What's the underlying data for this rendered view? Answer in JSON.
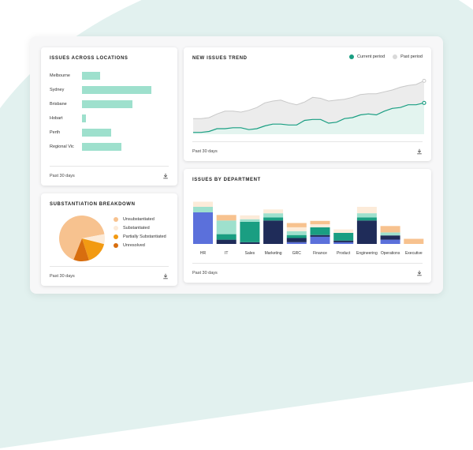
{
  "locations_card": {
    "title": "ISSUES ACROSS LOCATIONS",
    "footer": "Past 30 days",
    "rows": [
      {
        "label": "Melbourne",
        "value": 23
      },
      {
        "label": "Sydney",
        "value": 88
      },
      {
        "label": "Brisbane",
        "value": 64
      },
      {
        "label": "Hobart",
        "value": 5
      },
      {
        "label": "Perth",
        "value": 37
      },
      {
        "label": "Regional Vic",
        "value": 50
      }
    ],
    "max_value": 100,
    "bar_color": "#9ee0cd"
  },
  "trend_card": {
    "title": "NEW ISSUES TREND",
    "footer": "Past 30 days",
    "legend": {
      "current": "Current period",
      "past": "Past period"
    },
    "colors": {
      "current": "#1a9e82",
      "current_fill": "#e3f4ef",
      "past": "#c8c8c8",
      "past_fill": "#ececec"
    }
  },
  "substantiation_card": {
    "title": "SUBSTANTIATION BREAKDOWN",
    "footer": "Past 30 days",
    "legend": [
      {
        "label": "Unsubstantiated",
        "color": "#f7c28f"
      },
      {
        "label": "Substantiated",
        "color": "#fcebd9"
      },
      {
        "label": "Partially Substantiated",
        "color": "#f29a12"
      },
      {
        "label": "Unresolved",
        "color": "#d86e0f"
      }
    ]
  },
  "department_card": {
    "title": "ISSUES BY DEPARTMENT",
    "footer": "Past 30 days",
    "segment_colors": [
      "#5b70db",
      "#1f2c59",
      "#1a9e82",
      "#9ee0cd",
      "#fcebd9",
      "#f7c28f"
    ]
  },
  "chart_data": [
    {
      "type": "bar",
      "title": "ISSUES ACROSS LOCATIONS",
      "orientation": "horizontal",
      "categories": [
        "Melbourne",
        "Sydney",
        "Brisbane",
        "Hobart",
        "Perth",
        "Regional Vic"
      ],
      "values": [
        23,
        88,
        64,
        5,
        37,
        50
      ]
    },
    {
      "type": "area",
      "title": "NEW ISSUES TREND",
      "xlabel": "Past 30 days",
      "series": [
        {
          "name": "Current period",
          "values": [
            2,
            2,
            3,
            6,
            6,
            7,
            7,
            5,
            6,
            9,
            11,
            11,
            10,
            10,
            15,
            16,
            16,
            12,
            13,
            17,
            18,
            21,
            22,
            21,
            25,
            28,
            29,
            32,
            32,
            34
          ]
        },
        {
          "name": "Past period",
          "values": [
            17,
            17,
            18,
            22,
            25,
            25,
            24,
            26,
            29,
            34,
            36,
            37,
            34,
            32,
            35,
            40,
            39,
            36,
            37,
            38,
            40,
            43,
            44,
            44,
            46,
            48,
            51,
            53,
            54,
            58
          ]
        }
      ],
      "ylim": [
        0,
        60
      ]
    },
    {
      "type": "pie",
      "title": "SUBSTANTIATION BREAKDOWN",
      "categories": [
        "Unsubstantiated",
        "Substantiated",
        "Partially Substantiated",
        "Unresolved"
      ],
      "values": [
        66,
        7,
        16,
        11
      ]
    },
    {
      "type": "bar",
      "stacked": true,
      "title": "ISSUES BY DEPARTMENT",
      "categories": [
        "HR",
        "IT",
        "Sales",
        "Marketing",
        "GRC",
        "Finance",
        "Product",
        "Engineering",
        "Operations",
        "Executive"
      ],
      "series": [
        {
          "values": [
            74,
            0,
            0,
            0,
            4,
            17,
            4,
            0,
            10,
            0
          ]
        },
        {
          "values": [
            0,
            10,
            4,
            55,
            10,
            4,
            4,
            55,
            10,
            0
          ]
        },
        {
          "values": [
            0,
            13,
            48,
            7,
            7,
            18,
            18,
            7,
            0,
            0
          ]
        },
        {
          "values": [
            13,
            32,
            6,
            10,
            9,
            0,
            0,
            10,
            7,
            0
          ]
        },
        {
          "values": [
            12,
            0,
            9,
            9,
            9,
            7,
            8,
            15,
            0,
            0
          ]
        },
        {
          "values": [
            0,
            13,
            0,
            0,
            10,
            8,
            0,
            0,
            15,
            12
          ]
        }
      ],
      "ylim": [
        0,
        100
      ]
    }
  ]
}
